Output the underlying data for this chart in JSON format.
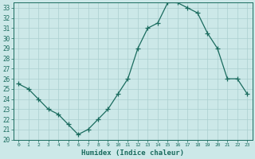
{
  "x": [
    0,
    1,
    2,
    3,
    4,
    5,
    6,
    7,
    8,
    9,
    10,
    11,
    12,
    13,
    14,
    15,
    16,
    17,
    18,
    19,
    20,
    21,
    22,
    23
  ],
  "y": [
    25.5,
    25.0,
    24.0,
    23.0,
    22.5,
    21.5,
    20.5,
    21.0,
    22.0,
    23.0,
    24.5,
    26.0,
    29.0,
    31.0,
    31.5,
    33.5,
    33.5,
    33.0,
    32.5,
    30.5,
    29.0,
    26.0,
    26.0,
    24.5
  ],
  "xlim": [
    -0.5,
    23.5
  ],
  "ylim": [
    20,
    33.5
  ],
  "yticks": [
    20,
    21,
    22,
    23,
    24,
    25,
    26,
    27,
    28,
    29,
    30,
    31,
    32,
    33
  ],
  "xticks": [
    0,
    1,
    2,
    3,
    4,
    5,
    6,
    7,
    8,
    9,
    10,
    11,
    12,
    13,
    14,
    15,
    16,
    17,
    18,
    19,
    20,
    21,
    22,
    23
  ],
  "xlabel": "Humidex (Indice chaleur)",
  "line_color": "#1a6b5e",
  "marker_color": "#1a6b5e",
  "bg_color": "#cce8e8",
  "grid_color": "#aacfcf",
  "label_color": "#1a6b5e",
  "tick_color": "#1a6b5e",
  "spine_color": "#1a6b5e"
}
